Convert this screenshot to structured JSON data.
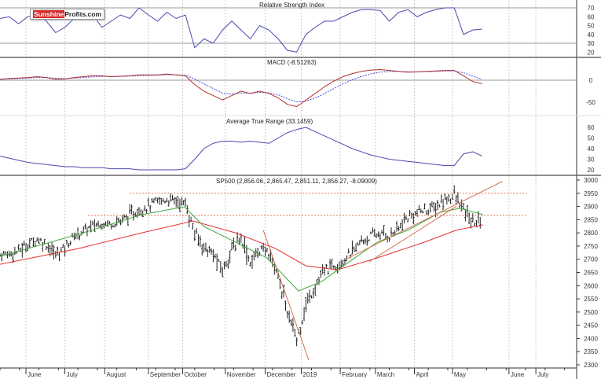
{
  "logo": {
    "part1": "Sunshine",
    "part2": "Profits.com"
  },
  "chart_data": [
    {
      "type": "line",
      "title": "Relative Strength Index",
      "ylim": [
        10,
        80
      ],
      "yticks": [
        70,
        60,
        50,
        40,
        30,
        20
      ],
      "reference_lines": [
        70,
        30
      ],
      "values": [
        58,
        60,
        52,
        60,
        62,
        55,
        42,
        48,
        58,
        58,
        62,
        48,
        55,
        62,
        58,
        70,
        62,
        55,
        65,
        58,
        62,
        25,
        35,
        30,
        45,
        55,
        45,
        35,
        50,
        45,
        35,
        22,
        20,
        40,
        48,
        55,
        55,
        60,
        65,
        68,
        68,
        67,
        55,
        65,
        68,
        60,
        65,
        68,
        70,
        70,
        40,
        45,
        46
      ]
    },
    {
      "type": "line",
      "title": "MACD (-8.51263)",
      "ylim": [
        -80,
        50
      ],
      "yticks": [
        0,
        -50
      ],
      "values": [
        2,
        4,
        5,
        6,
        8,
        6,
        2,
        3,
        6,
        8,
        10,
        10,
        8,
        9,
        10,
        12,
        12,
        12,
        14,
        12,
        10,
        -10,
        -25,
        -35,
        -45,
        -35,
        -25,
        -30,
        -25,
        -30,
        -40,
        -55,
        -60,
        -45,
        -30,
        -15,
        -2,
        8,
        15,
        20,
        23,
        24,
        22,
        20,
        18,
        19,
        20,
        21,
        22,
        22,
        10,
        -3,
        -8
      ]
    },
    {
      "type": "line",
      "title": "Average True Range (33.1459)",
      "ylim": [
        15,
        70
      ],
      "yticks": [
        60,
        50,
        40,
        30,
        20
      ],
      "values": [
        33,
        31,
        29,
        27,
        26,
        25,
        24,
        23,
        23,
        22,
        22,
        22,
        21,
        21,
        21,
        20,
        20,
        20,
        20,
        20,
        21,
        30,
        40,
        45,
        47,
        47,
        46,
        47,
        46,
        45,
        50,
        55,
        58,
        60,
        56,
        52,
        48,
        44,
        40,
        37,
        34,
        32,
        30,
        29,
        28,
        27,
        26,
        25,
        24,
        24,
        35,
        37,
        33
      ]
    },
    {
      "type": "bar",
      "title": "SP500 (2,856.06, 2,865.47, 2,851.11, 2,856.27, -8.09009)",
      "ylim": [
        2290,
        3015
      ],
      "yticks": [
        3000,
        2950,
        2900,
        2850,
        2800,
        2750,
        2700,
        2650,
        2600,
        2550,
        2500,
        2450,
        2400,
        2350,
        2300
      ],
      "weekly_close": [
        2720,
        2725,
        2735,
        2760,
        2780,
        2760,
        2720,
        2750,
        2790,
        2810,
        2830,
        2840,
        2840,
        2850,
        2870,
        2890,
        2905,
        2920,
        2930,
        2925,
        2910,
        2800,
        2750,
        2720,
        2660,
        2740,
        2790,
        2690,
        2740,
        2730,
        2640,
        2500,
        2400,
        2530,
        2600,
        2660,
        2680,
        2700,
        2730,
        2770,
        2790,
        2800,
        2790,
        2820,
        2860,
        2880,
        2890,
        2900,
        2930,
        2945,
        2890,
        2840,
        2860
      ],
      "ma50": [
        [
          0,
          2711
        ],
        [
          8.5,
          2795
        ],
        [
          15.3,
          2869
        ],
        [
          19.9,
          2899
        ],
        [
          22,
          2824
        ],
        [
          25.4,
          2765
        ],
        [
          28.8,
          2705
        ],
        [
          32.2,
          2580
        ],
        [
          34.7,
          2616
        ],
        [
          37.3,
          2681
        ],
        [
          40.7,
          2765
        ],
        [
          44,
          2810
        ],
        [
          47.5,
          2878
        ],
        [
          49.6,
          2893
        ],
        [
          52.1,
          2869
        ]
      ],
      "ma200": [
        [
          0,
          2681
        ],
        [
          8.5,
          2741
        ],
        [
          15.3,
          2800
        ],
        [
          20.8,
          2845
        ],
        [
          25.4,
          2800
        ],
        [
          29.7,
          2741
        ],
        [
          33,
          2675
        ],
        [
          36.4,
          2660
        ],
        [
          40.7,
          2705
        ],
        [
          45.8,
          2765
        ],
        [
          49.2,
          2810
        ],
        [
          52.1,
          2830
        ]
      ],
      "trendlines": [
        [
          [
            28.4,
            2810
          ],
          [
            33.3,
            2318
          ]
        ],
        [
          [
            37.3,
            2700
          ],
          [
            54.2,
            2995
          ]
        ],
        [
          [
            39.8,
            2690
          ],
          [
            49.2,
            2900
          ]
        ]
      ],
      "resistance": [
        {
          "price": 2950,
          "from": 14,
          "to": 56.8
        },
        {
          "price": 2866,
          "from": 9.5,
          "to": 56.8
        }
      ]
    }
  ],
  "x_axis": {
    "week_span": 62.2,
    "labels": [
      {
        "text": "June",
        "w": 2.8
      },
      {
        "text": "July",
        "w": 7
      },
      {
        "text": "August",
        "w": 11.3
      },
      {
        "text": "September",
        "w": 16
      },
      {
        "text": "October",
        "w": 19.7
      },
      {
        "text": "November",
        "w": 24.3
      },
      {
        "text": "December",
        "w": 28.6
      },
      {
        "text": "2019",
        "w": 32.5
      },
      {
        "text": "February",
        "w": 36.7
      },
      {
        "text": "March",
        "w": 40.5
      },
      {
        "text": "April",
        "w": 44.7
      },
      {
        "text": "May",
        "w": 48.8
      },
      {
        "text": "June",
        "w": 54.9
      },
      {
        "text": "July",
        "w": 57.8
      }
    ]
  },
  "colors": {
    "rsi": "#4848b0",
    "macd": "#b03030",
    "signal": "#4a4ae0",
    "atr": "#4848b0",
    "bars": "#222222",
    "ma50": "#3aa83a",
    "ma200": "#e83030",
    "trend": "#d07050",
    "resistance": "#e07050"
  }
}
